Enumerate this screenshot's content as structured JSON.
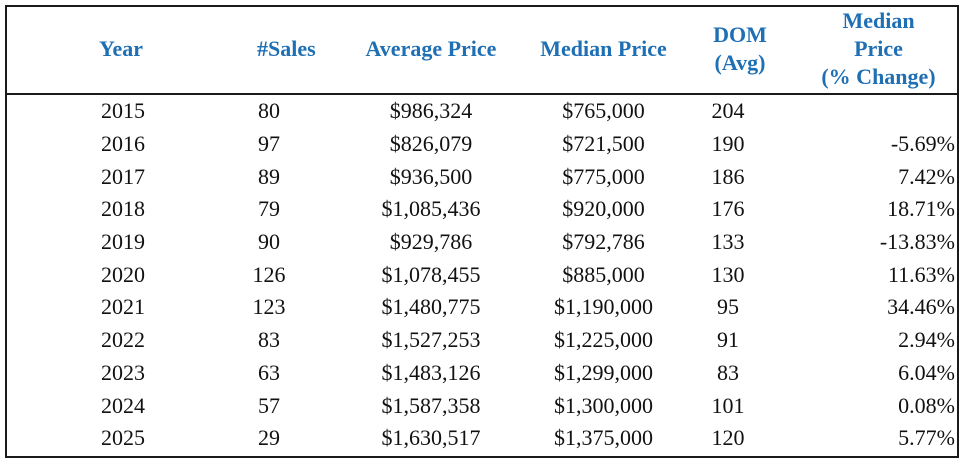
{
  "table": {
    "headers": {
      "year": "Year",
      "sales": "#Sales",
      "avg_price": "Average Price",
      "median_price": "Median Price",
      "dom_line1": "DOM",
      "dom_line2": "(Avg)",
      "pct_line1": "Median",
      "pct_line2": "Price",
      "pct_line3": "(% Change)"
    },
    "header_color": "#1f6fb5",
    "rows": [
      {
        "year": "2015",
        "sales": "80",
        "avg_price": "$986,324",
        "median_price": "$765,000",
        "dom": "204",
        "pct_change": ""
      },
      {
        "year": "2016",
        "sales": "97",
        "avg_price": "$826,079",
        "median_price": "$721,500",
        "dom": "190",
        "pct_change": "-5.69%"
      },
      {
        "year": "2017",
        "sales": "89",
        "avg_price": "$936,500",
        "median_price": "$775,000",
        "dom": "186",
        "pct_change": "7.42%"
      },
      {
        "year": "2018",
        "sales": "79",
        "avg_price": "$1,085,436",
        "median_price": "$920,000",
        "dom": "176",
        "pct_change": "18.71%"
      },
      {
        "year": "2019",
        "sales": "90",
        "avg_price": "$929,786",
        "median_price": "$792,786",
        "dom": "133",
        "pct_change": "-13.83%"
      },
      {
        "year": "2020",
        "sales": "126",
        "avg_price": "$1,078,455",
        "median_price": "$885,000",
        "dom": "130",
        "pct_change": "11.63%"
      },
      {
        "year": "2021",
        "sales": "123",
        "avg_price": "$1,480,775",
        "median_price": "$1,190,000",
        "dom": "95",
        "pct_change": "34.46%"
      },
      {
        "year": "2022",
        "sales": "83",
        "avg_price": "$1,527,253",
        "median_price": "$1,225,000",
        "dom": "91",
        "pct_change": "2.94%"
      },
      {
        "year": "2023",
        "sales": "63",
        "avg_price": "$1,483,126",
        "median_price": "$1,299,000",
        "dom": "83",
        "pct_change": "6.04%"
      },
      {
        "year": "2024",
        "sales": "57",
        "avg_price": "$1,587,358",
        "median_price": "$1,300,000",
        "dom": "101",
        "pct_change": "0.08%"
      },
      {
        "year": "2025",
        "sales": "29",
        "avg_price": "$1,630,517",
        "median_price": "$1,375,000",
        "dom": "120",
        "pct_change": "5.77%"
      }
    ]
  }
}
